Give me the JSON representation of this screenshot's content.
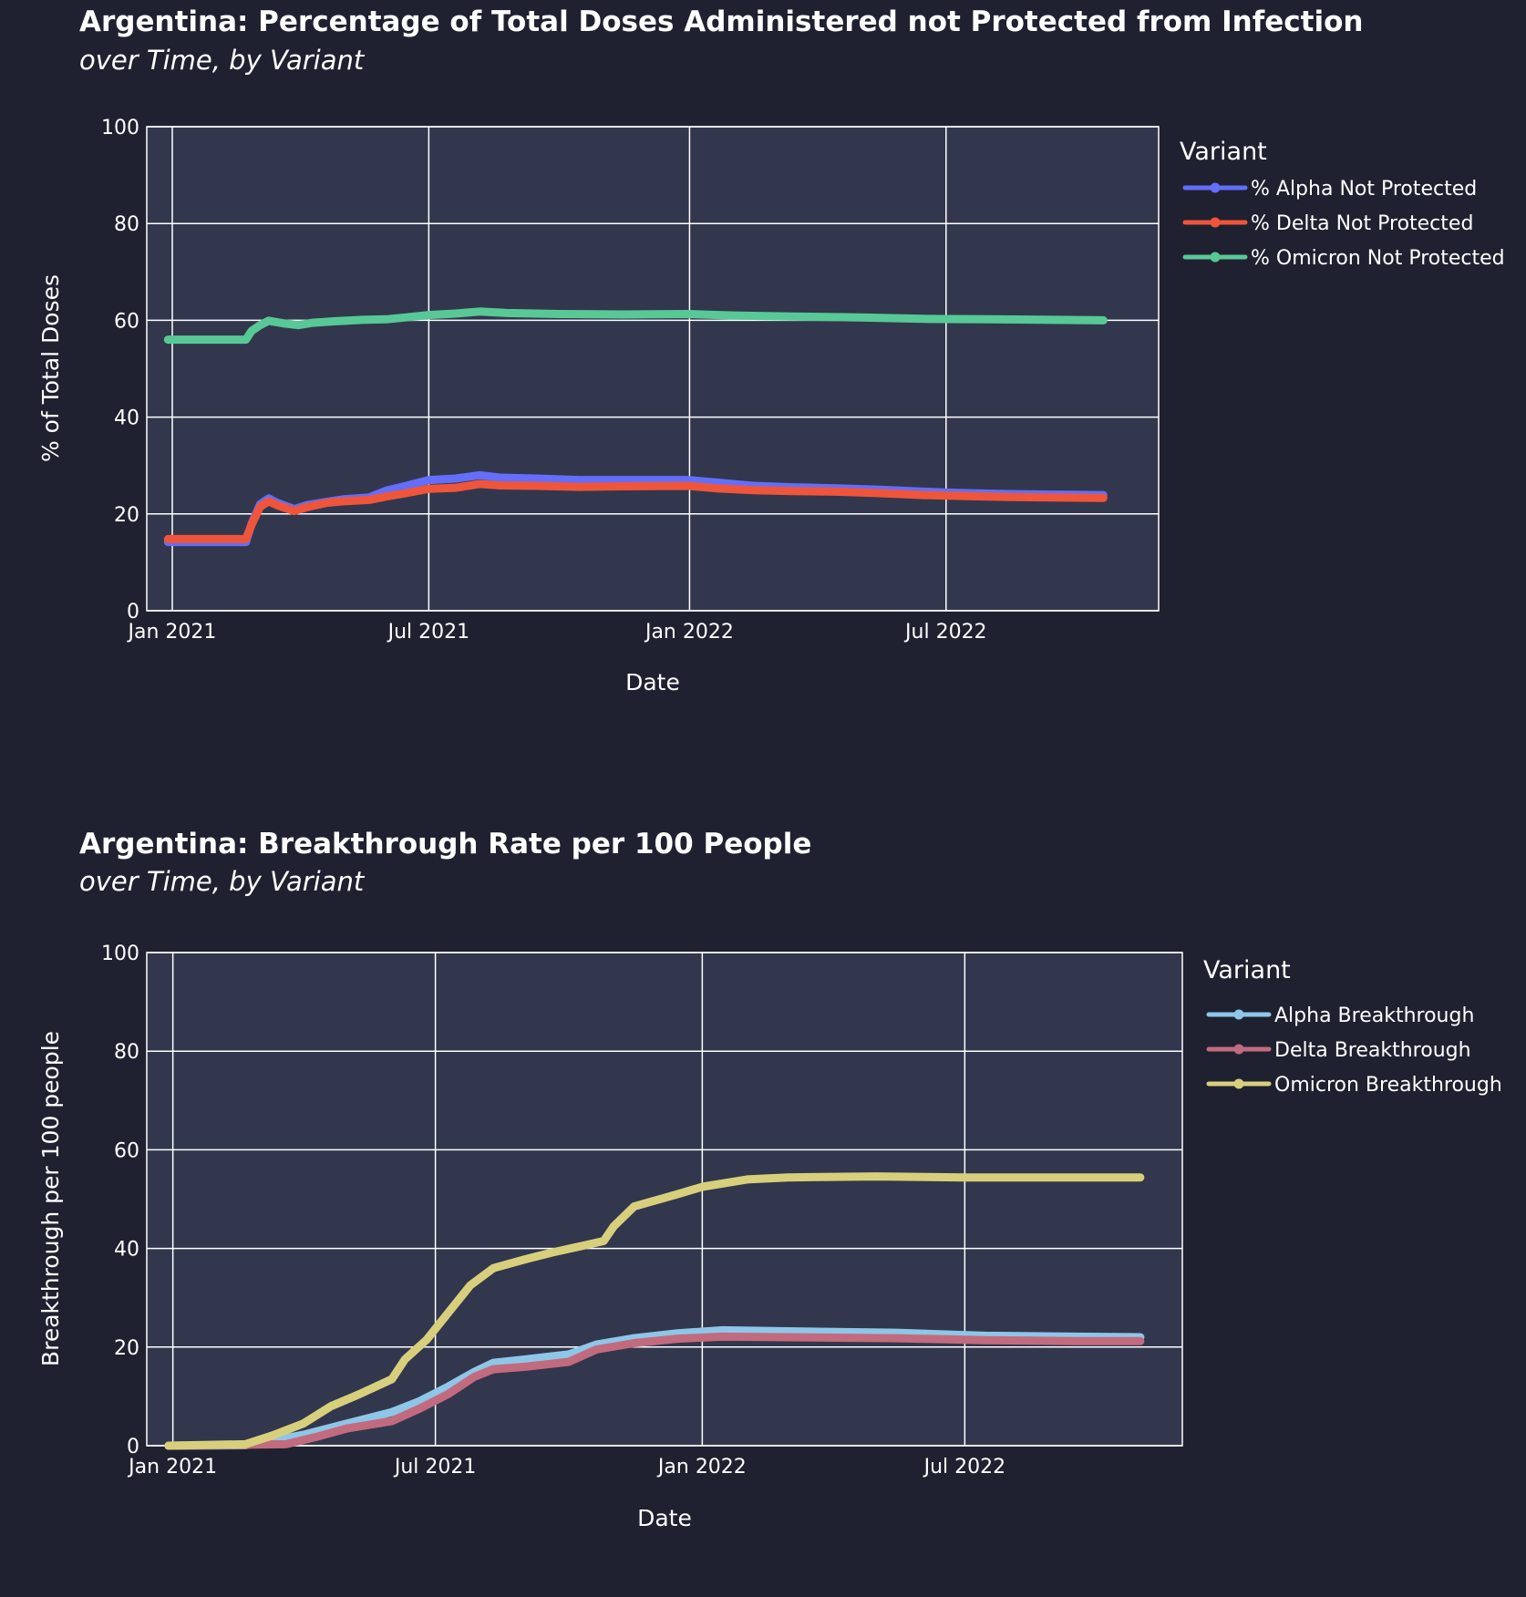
{
  "chart_data": [
    {
      "type": "line",
      "title": "Argentina: Percentage of Total Doses Administered not Protected from Infection",
      "subtitle": "over Time, by Variant",
      "xlabel": "Date",
      "ylabel": "% of Total Doses",
      "xlim": [
        "2020-12-14",
        "2022-11-28"
      ],
      "ylim": [
        0,
        100
      ],
      "x_ticks": [
        {
          "date": "2021-01-01",
          "label": "Jan 2021"
        },
        {
          "date": "2021-07-01",
          "label": "Jul 2021"
        },
        {
          "date": "2022-01-01",
          "label": "Jan 2022"
        },
        {
          "date": "2022-07-01",
          "label": "Jul 2022"
        }
      ],
      "y_ticks": [
        0,
        20,
        40,
        60,
        80,
        100
      ],
      "grid": true,
      "legend_title": "Variant",
      "legend_position": "top-right",
      "series": [
        {
          "name": "% Alpha Not Protected",
          "color": "#636efa",
          "points": [
            [
              "2020-12-29",
              14.2
            ],
            [
              "2021-02-22",
              14.2
            ],
            [
              "2021-02-26",
              18
            ],
            [
              "2021-03-04",
              22
            ],
            [
              "2021-03-10",
              23.2
            ],
            [
              "2021-03-16",
              22.3
            ],
            [
              "2021-03-28",
              21
            ],
            [
              "2021-04-06",
              21.8
            ],
            [
              "2021-04-20",
              22.5
            ],
            [
              "2021-05-01",
              23
            ],
            [
              "2021-05-20",
              23.4
            ],
            [
              "2021-06-01",
              24.8
            ],
            [
              "2021-06-15",
              25.8
            ],
            [
              "2021-07-01",
              27
            ],
            [
              "2021-07-20",
              27.3
            ],
            [
              "2021-08-06",
              28
            ],
            [
              "2021-08-20",
              27.5
            ],
            [
              "2021-09-15",
              27.3
            ],
            [
              "2021-10-15",
              27
            ],
            [
              "2021-11-15",
              27
            ],
            [
              "2021-12-31",
              27
            ],
            [
              "2022-01-20",
              26.5
            ],
            [
              "2022-02-15",
              25.8
            ],
            [
              "2022-03-15",
              25.5
            ],
            [
              "2022-04-15",
              25.3
            ],
            [
              "2022-05-15",
              25
            ],
            [
              "2022-06-15",
              24.6
            ],
            [
              "2022-07-15",
              24.3
            ],
            [
              "2022-08-15",
              24.1
            ],
            [
              "2022-09-15",
              24
            ],
            [
              "2022-10-20",
              23.9
            ]
          ]
        },
        {
          "name": "% Delta Not Protected",
          "color": "#ef553b",
          "points": [
            [
              "2020-12-29",
              14.8
            ],
            [
              "2021-02-22",
              14.8
            ],
            [
              "2021-02-26",
              17.8
            ],
            [
              "2021-03-04",
              21.5
            ],
            [
              "2021-03-10",
              22.6
            ],
            [
              "2021-03-16",
              21.8
            ],
            [
              "2021-03-28",
              20.6
            ],
            [
              "2021-04-06",
              21.4
            ],
            [
              "2021-04-20",
              22.3
            ],
            [
              "2021-05-01",
              22.6
            ],
            [
              "2021-05-20",
              22.9
            ],
            [
              "2021-06-01",
              23.6
            ],
            [
              "2021-06-15",
              24.3
            ],
            [
              "2021-07-01",
              25.2
            ],
            [
              "2021-07-20",
              25.4
            ],
            [
              "2021-08-06",
              26.2
            ],
            [
              "2021-08-20",
              25.9
            ],
            [
              "2021-09-15",
              25.8
            ],
            [
              "2021-10-15",
              25.6
            ],
            [
              "2021-11-15",
              25.7
            ],
            [
              "2021-12-31",
              25.8
            ],
            [
              "2022-01-20",
              25.3
            ],
            [
              "2022-02-15",
              24.9
            ],
            [
              "2022-03-15",
              24.7
            ],
            [
              "2022-04-15",
              24.6
            ],
            [
              "2022-05-15",
              24.3
            ],
            [
              "2022-06-15",
              23.9
            ],
            [
              "2022-07-15",
              23.7
            ],
            [
              "2022-08-15",
              23.5
            ],
            [
              "2022-09-15",
              23.4
            ],
            [
              "2022-10-20",
              23.3
            ]
          ]
        },
        {
          "name": "% Omicron Not Protected",
          "color": "#00cc96",
          "color_drawn": "#58c896",
          "points": [
            [
              "2020-12-29",
              56
            ],
            [
              "2021-02-22",
              56
            ],
            [
              "2021-02-26",
              57.8
            ],
            [
              "2021-03-04",
              59
            ],
            [
              "2021-03-10",
              59.9
            ],
            [
              "2021-03-20",
              59.4
            ],
            [
              "2021-03-31",
              59
            ],
            [
              "2021-04-10",
              59.5
            ],
            [
              "2021-04-25",
              59.8
            ],
            [
              "2021-05-15",
              60.1
            ],
            [
              "2021-06-01",
              60.2
            ],
            [
              "2021-06-15",
              60.6
            ],
            [
              "2021-07-01",
              61.1
            ],
            [
              "2021-07-20",
              61.4
            ],
            [
              "2021-08-06",
              61.8
            ],
            [
              "2021-08-25",
              61.5
            ],
            [
              "2021-10-01",
              61.3
            ],
            [
              "2021-11-15",
              61.2
            ],
            [
              "2021-12-31",
              61.3
            ],
            [
              "2022-02-01",
              61
            ],
            [
              "2022-03-15",
              60.8
            ],
            [
              "2022-05-01",
              60.6
            ],
            [
              "2022-06-15",
              60.3
            ],
            [
              "2022-08-01",
              60.2
            ],
            [
              "2022-09-15",
              60.1
            ],
            [
              "2022-10-20",
              60
            ]
          ]
        }
      ]
    },
    {
      "type": "line",
      "title": "Argentina: Breakthrough Rate per 100 People",
      "subtitle": "over Time, by Variant",
      "xlabel": "Date",
      "ylabel": "Breakthrough per 100 people",
      "xlim": [
        "2020-12-14",
        "2022-11-28"
      ],
      "ylim": [
        0,
        100
      ],
      "x_ticks": [
        {
          "date": "2021-01-01",
          "label": "Jan 2021"
        },
        {
          "date": "2021-07-01",
          "label": "Jul 2021"
        },
        {
          "date": "2022-01-01",
          "label": "Jan 2022"
        },
        {
          "date": "2022-07-01",
          "label": "Jul 2022"
        }
      ],
      "y_ticks": [
        0,
        20,
        40,
        60,
        80,
        100
      ],
      "grid": true,
      "legend_title": "Variant",
      "legend_position": "top-right",
      "series": [
        {
          "name": "Alpha Breakthrough",
          "color": "#8ec6e8",
          "points": [
            [
              "2020-12-29",
              0
            ],
            [
              "2021-02-20",
              0.1
            ],
            [
              "2021-03-10",
              1
            ],
            [
              "2021-04-01",
              2.2
            ],
            [
              "2021-05-01",
              4.5
            ],
            [
              "2021-06-01",
              6.8
            ],
            [
              "2021-06-20",
              9
            ],
            [
              "2021-07-10",
              12
            ],
            [
              "2021-07-28",
              15
            ],
            [
              "2021-08-10",
              16.8
            ],
            [
              "2021-09-01",
              17.5
            ],
            [
              "2021-10-01",
              18.5
            ],
            [
              "2021-10-20",
              20.5
            ],
            [
              "2021-11-15",
              21.8
            ],
            [
              "2021-12-15",
              22.8
            ],
            [
              "2022-01-15",
              23.4
            ],
            [
              "2022-03-01",
              23.2
            ],
            [
              "2022-05-15",
              22.9
            ],
            [
              "2022-07-15",
              22.3
            ],
            [
              "2022-09-15",
              22.1
            ],
            [
              "2022-10-30",
              22
            ]
          ]
        },
        {
          "name": "Delta Breakthrough",
          "color": "#c26b7e",
          "points": [
            [
              "2020-12-29",
              0
            ],
            [
              "2021-03-20",
              0.3
            ],
            [
              "2021-04-10",
              1.8
            ],
            [
              "2021-05-01",
              3.5
            ],
            [
              "2021-06-01",
              5
            ],
            [
              "2021-06-20",
              7.5
            ],
            [
              "2021-07-10",
              10.5
            ],
            [
              "2021-07-28",
              14
            ],
            [
              "2021-08-10",
              15.5
            ],
            [
              "2021-09-01",
              16
            ],
            [
              "2021-10-01",
              17
            ],
            [
              "2021-10-20",
              19.5
            ],
            [
              "2021-11-15",
              20.8
            ],
            [
              "2021-12-15",
              21.7
            ],
            [
              "2022-01-15",
              22.1
            ],
            [
              "2022-03-01",
              22
            ],
            [
              "2022-05-15",
              21.8
            ],
            [
              "2022-07-15",
              21.4
            ],
            [
              "2022-09-15",
              21.2
            ],
            [
              "2022-10-30",
              21.2
            ]
          ]
        },
        {
          "name": "Omicron Breakthrough",
          "color": "#d8cf7c",
          "points": [
            [
              "2020-12-29",
              0
            ],
            [
              "2021-02-20",
              0.3
            ],
            [
              "2021-03-10",
              2
            ],
            [
              "2021-04-01",
              4.5
            ],
            [
              "2021-04-20",
              8
            ],
            [
              "2021-05-10",
              10.5
            ],
            [
              "2021-06-01",
              13.5
            ],
            [
              "2021-06-10",
              17.5
            ],
            [
              "2021-06-25",
              21.5
            ],
            [
              "2021-07-10",
              27
            ],
            [
              "2021-07-25",
              32.5
            ],
            [
              "2021-08-10",
              36
            ],
            [
              "2021-09-01",
              37.8
            ],
            [
              "2021-09-20",
              39.2
            ],
            [
              "2021-10-10",
              40.5
            ],
            [
              "2021-10-25",
              41.5
            ],
            [
              "2021-11-01",
              44.5
            ],
            [
              "2021-11-15",
              48.5
            ],
            [
              "2021-12-15",
              51
            ],
            [
              "2022-01-01",
              52.5
            ],
            [
              "2022-02-01",
              54
            ],
            [
              "2022-03-01",
              54.4
            ],
            [
              "2022-05-01",
              54.6
            ],
            [
              "2022-07-01",
              54.4
            ],
            [
              "2022-09-01",
              54.4
            ],
            [
              "2022-10-30",
              54.4
            ]
          ]
        }
      ]
    }
  ]
}
